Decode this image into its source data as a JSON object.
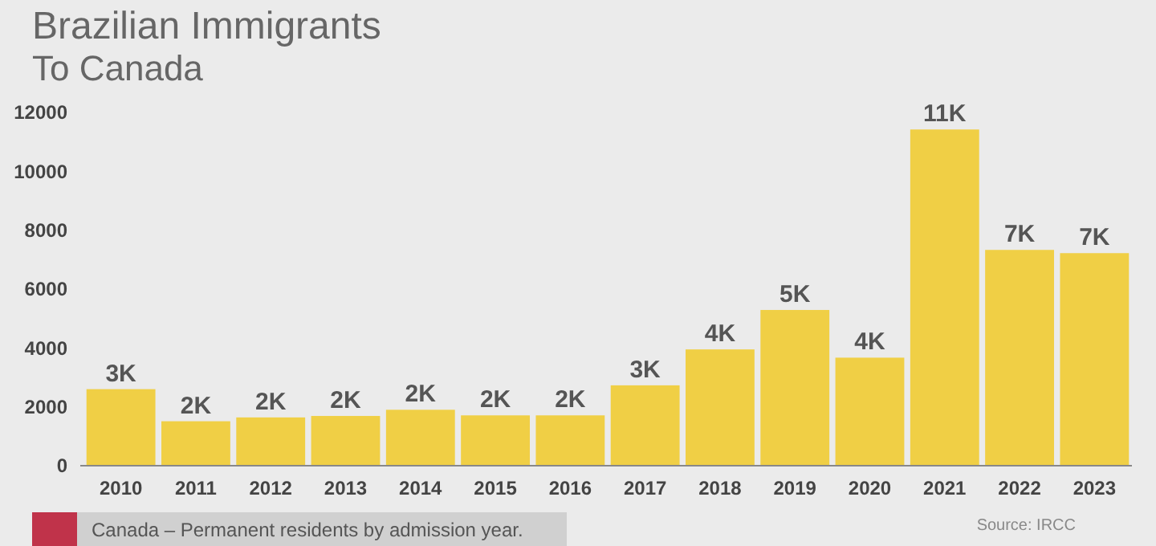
{
  "chart_data": {
    "type": "bar",
    "title": "Brazilian Immigrants",
    "subtitle": "To Canada",
    "categories": [
      "2010",
      "2011",
      "2012",
      "2013",
      "2014",
      "2015",
      "2016",
      "2017",
      "2018",
      "2019",
      "2020",
      "2021",
      "2022",
      "2023"
    ],
    "values": [
      2600,
      1510,
      1640,
      1690,
      1900,
      1710,
      1710,
      2730,
      3950,
      5290,
      3670,
      11420,
      7330,
      7220
    ],
    "value_labels": [
      "3K",
      "2K",
      "2K",
      "2K",
      "2K",
      "2K",
      "2K",
      "3K",
      "4K",
      "5K",
      "4K",
      "11K",
      "7K",
      "7K"
    ],
    "color": "#f0cf45",
    "ylim": [
      0,
      12000
    ],
    "yticks": [
      0,
      2000,
      4000,
      6000,
      8000,
      10000,
      12000
    ],
    "annotations": [
      "Canada – Permanent residents by admission year.",
      "Source: IRCC"
    ]
  }
}
